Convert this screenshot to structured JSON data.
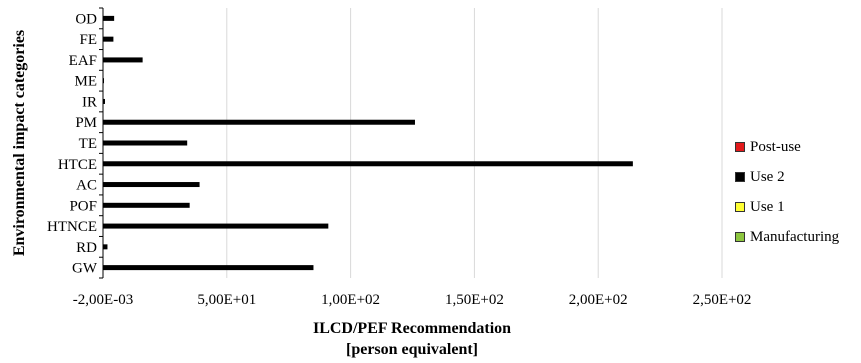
{
  "chart_data": {
    "type": "bar",
    "orientation": "horizontal",
    "categories": [
      "OD",
      "FE",
      "EAF",
      "ME",
      "IR",
      "PM",
      "TE",
      "HTCE",
      "AC",
      "POF",
      "HTNCE",
      "RD",
      "GW"
    ],
    "series": [
      {
        "name": "Manufacturing",
        "color": "#8dc63f",
        "values": [
          0,
          0,
          0,
          0,
          0,
          0,
          0,
          0,
          0,
          0,
          0,
          0,
          0
        ]
      },
      {
        "name": "Use 1",
        "color": "#ffff33",
        "values": [
          0,
          0,
          0,
          0,
          0,
          0,
          0,
          0,
          0,
          0,
          0,
          0,
          0
        ]
      },
      {
        "name": "Use 2",
        "color": "#000000",
        "values": [
          4.5,
          4.2,
          16,
          0.3,
          0.8,
          126,
          34,
          214,
          39,
          35,
          91,
          1.8,
          85
        ]
      },
      {
        "name": "Post-use",
        "color": "#e31a1c",
        "values": [
          0,
          0,
          0,
          0,
          0,
          0,
          0,
          0,
          0,
          0,
          0,
          0,
          0
        ]
      }
    ],
    "legend_order": [
      "Post-use",
      "Use 2",
      "Use 1",
      "Manufacturing"
    ],
    "xlim": [
      -0.002,
      250
    ],
    "xticks": [
      -0.002,
      50,
      100,
      150,
      200,
      250
    ],
    "xtick_labels": [
      "-2,00E-03",
      "5,00E+01",
      "1,00E+02",
      "1,50E+02",
      "2,00E+02",
      "2,50E+02"
    ],
    "xlabel_line1": "ILCD/PEF Recommendation",
    "xlabel_line2": "[person equivalent]",
    "ylabel": "Environmental impact categories",
    "grid": "vertical",
    "legend_position": "right"
  }
}
